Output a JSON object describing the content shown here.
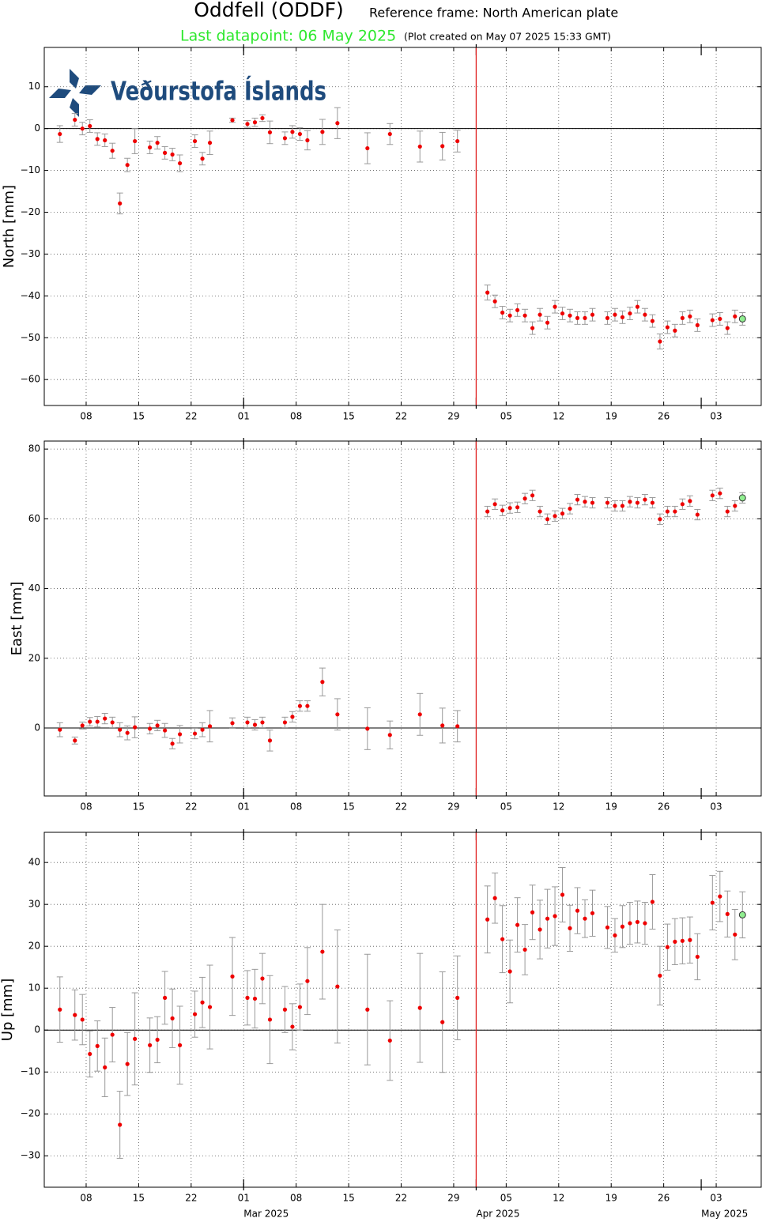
{
  "header": {
    "title": "Oddfell (ODDF)",
    "reference": "Reference frame: North American plate",
    "last_datapoint": "Last datapoint: 06 May 2025",
    "created": "(Plot created on May 07 2025 15:33 GMT)"
  },
  "logo": {
    "text": "Veðurstofa Íslands"
  },
  "chart_data": [
    {
      "type": "scatter",
      "ylabel": "North [mm]",
      "color": "#ee0000",
      "last_point_color": "#90ee90",
      "error_color": "#999999",
      "event_color": "#e02020",
      "event_date": "2025-04-01",
      "zero_line": true,
      "grid": true,
      "xlim": [
        "2025-02-02T10:00:00Z",
        "2025-05-09T00:00:00Z"
      ],
      "xticks": [
        {
          "value": "2025-02-08",
          "label": "08"
        },
        {
          "value": "2025-02-15",
          "label": "15"
        },
        {
          "value": "2025-02-22",
          "label": "22"
        },
        {
          "value": "2025-03-01",
          "label": "01"
        },
        {
          "value": "2025-03-08",
          "label": "08"
        },
        {
          "value": "2025-03-15",
          "label": "15"
        },
        {
          "value": "2025-03-22",
          "label": "22"
        },
        {
          "value": "2025-03-29",
          "label": "29"
        },
        {
          "value": "2025-04-05",
          "label": "05"
        },
        {
          "value": "2025-04-12",
          "label": "12"
        },
        {
          "value": "2025-04-19",
          "label": "19"
        },
        {
          "value": "2025-04-26",
          "label": "26"
        },
        {
          "value": "2025-05-03",
          "label": "03"
        }
      ],
      "ylim": [
        -66.2,
        19.4
      ],
      "yticks": [
        {
          "value": -60,
          "label": "−60"
        },
        {
          "value": -50,
          "label": "−50"
        },
        {
          "value": -40,
          "label": "−40"
        },
        {
          "value": -30,
          "label": "−30"
        },
        {
          "value": -20,
          "label": "−20"
        },
        {
          "value": -10,
          "label": "−10"
        },
        0,
        10
      ],
      "x": [
        "2025-02-04",
        "2025-02-06",
        "2025-02-07",
        "2025-02-08",
        "2025-02-09",
        "2025-02-10",
        "2025-02-11",
        "2025-02-12",
        "2025-02-13",
        "2025-02-14",
        "2025-02-16",
        "2025-02-17",
        "2025-02-18",
        "2025-02-19",
        "2025-02-20",
        "2025-02-22",
        "2025-02-23",
        "2025-02-24",
        "2025-02-27",
        "2025-03-01",
        "2025-03-02",
        "2025-03-03",
        "2025-03-04",
        "2025-03-06",
        "2025-03-07",
        "2025-03-08",
        "2025-03-09",
        "2025-03-11",
        "2025-03-13",
        "2025-03-17",
        "2025-03-20",
        "2025-03-24",
        "2025-03-27",
        "2025-03-29",
        "2025-04-02",
        "2025-04-03",
        "2025-04-04",
        "2025-04-05",
        "2025-04-06",
        "2025-04-07",
        "2025-04-08",
        "2025-04-09",
        "2025-04-10",
        "2025-04-11",
        "2025-04-12",
        "2025-04-13",
        "2025-04-14",
        "2025-04-15",
        "2025-04-16",
        "2025-04-18",
        "2025-04-19",
        "2025-04-20",
        "2025-04-21",
        "2025-04-22",
        "2025-04-23",
        "2025-04-24",
        "2025-04-25",
        "2025-04-26",
        "2025-04-27",
        "2025-04-28",
        "2025-04-29",
        "2025-04-30",
        "2025-05-02",
        "2025-05-03",
        "2025-05-04",
        "2025-05-05",
        "2025-05-06"
      ],
      "values": [
        -1.3,
        2.1,
        0,
        0.6,
        -2.5,
        -2.8,
        -5.3,
        -17.9,
        -8.7,
        -3.0,
        -4.5,
        -3.4,
        -5.8,
        -6.2,
        -8.3,
        -3.0,
        -7.2,
        -3.4,
        2.0,
        1.1,
        1.5,
        2.5,
        -0.9,
        -2.3,
        -0.8,
        -1.3,
        -2.8,
        -0.8,
        1.3,
        -4.7,
        -1.3,
        -4.3,
        -4.2,
        -3.0,
        -39.2,
        -41.3,
        -44.0,
        -44.7,
        -43.4,
        -44.7,
        -47.7,
        -44.5,
        -46.4,
        -42.6,
        -44.2,
        -44.7,
        -45.3,
        -45.3,
        -44.5,
        -45.3,
        -44.5,
        -45.1,
        -44.2,
        -42.6,
        -44.5,
        -46.0,
        -50.9,
        -47.5,
        -48.3,
        -45.3,
        -44.9,
        -47.0,
        -45.8,
        -45.5,
        -47.7,
        -44.9,
        -45.5
      ],
      "errors": [
        2,
        1.5,
        1.5,
        1.5,
        1.5,
        1.5,
        1.8,
        2.5,
        1.6,
        3,
        1.5,
        1.5,
        1.5,
        1.5,
        2,
        1.5,
        1.5,
        2.8,
        0.5,
        0.8,
        1,
        0.8,
        2.7,
        1.5,
        1.5,
        1.5,
        2.3,
        3,
        3.7,
        3.7,
        2.5,
        3.7,
        3.3,
        2.6,
        1.8,
        1.5,
        1.5,
        1.5,
        1.5,
        1.5,
        1.5,
        1.5,
        1.5,
        1.5,
        1.5,
        1.5,
        1.5,
        1.5,
        1.5,
        1.5,
        1.5,
        1.5,
        1.5,
        1.5,
        1.5,
        1.5,
        1.8,
        1.5,
        1.5,
        1.5,
        1.5,
        1.5,
        1.5,
        1.5,
        1.5,
        1.5,
        1.5
      ]
    },
    {
      "type": "scatter",
      "ylabel": "East [mm]",
      "color": "#ee0000",
      "last_point_color": "#90ee90",
      "error_color": "#999999",
      "event_color": "#e02020",
      "event_date": "2025-04-01",
      "zero_line": true,
      "grid": true,
      "xlim": [
        "2025-02-02T10:00:00Z",
        "2025-05-09T00:00:00Z"
      ],
      "xticks": [
        {
          "value": "2025-02-08",
          "label": "08"
        },
        {
          "value": "2025-02-15",
          "label": "15"
        },
        {
          "value": "2025-02-22",
          "label": "22"
        },
        {
          "value": "2025-03-01",
          "label": "01"
        },
        {
          "value": "2025-03-08",
          "label": "08"
        },
        {
          "value": "2025-03-15",
          "label": "15"
        },
        {
          "value": "2025-03-22",
          "label": "22"
        },
        {
          "value": "2025-03-29",
          "label": "29"
        },
        {
          "value": "2025-04-05",
          "label": "05"
        },
        {
          "value": "2025-04-12",
          "label": "12"
        },
        {
          "value": "2025-04-19",
          "label": "19"
        },
        {
          "value": "2025-04-26",
          "label": "26"
        },
        {
          "value": "2025-05-03",
          "label": "03"
        }
      ],
      "ylim": [
        -19.5,
        82.3
      ],
      "yticks": [
        0,
        20,
        40,
        60,
        80
      ],
      "x": [
        "2025-02-04",
        "2025-02-06",
        "2025-02-07",
        "2025-02-08",
        "2025-02-09",
        "2025-02-10",
        "2025-02-11",
        "2025-02-12",
        "2025-02-13",
        "2025-02-14",
        "2025-02-16",
        "2025-02-17",
        "2025-02-18",
        "2025-02-19",
        "2025-02-20",
        "2025-02-22",
        "2025-02-23",
        "2025-02-24",
        "2025-02-27",
        "2025-03-01",
        "2025-03-02",
        "2025-03-03",
        "2025-03-04",
        "2025-03-06",
        "2025-03-07",
        "2025-03-08",
        "2025-03-09",
        "2025-03-11",
        "2025-03-13",
        "2025-03-17",
        "2025-03-20",
        "2025-03-24",
        "2025-03-27",
        "2025-03-29",
        "2025-04-02",
        "2025-04-03",
        "2025-04-04",
        "2025-04-05",
        "2025-04-06",
        "2025-04-07",
        "2025-04-08",
        "2025-04-09",
        "2025-04-10",
        "2025-04-11",
        "2025-04-12",
        "2025-04-13",
        "2025-04-14",
        "2025-04-15",
        "2025-04-16",
        "2025-04-18",
        "2025-04-19",
        "2025-04-20",
        "2025-04-21",
        "2025-04-22",
        "2025-04-23",
        "2025-04-24",
        "2025-04-25",
        "2025-04-26",
        "2025-04-27",
        "2025-04-28",
        "2025-04-29",
        "2025-04-30",
        "2025-05-02",
        "2025-05-03",
        "2025-05-04",
        "2025-05-05",
        "2025-05-06"
      ],
      "values": [
        -0.5,
        -3.6,
        0.7,
        1.8,
        1.8,
        2.7,
        1.6,
        -0.5,
        -1.4,
        0.2,
        -0.2,
        0.7,
        -0.7,
        -4.5,
        -1.8,
        -1.6,
        -0.5,
        0.5,
        1.4,
        1.6,
        0.9,
        1.6,
        -3.6,
        1.6,
        3.2,
        6.3,
        6.3,
        13.2,
        3.9,
        -0.2,
        -2.0,
        3.9,
        0.7,
        0.5,
        62.1,
        64.2,
        62.4,
        63.1,
        63.3,
        65.8,
        66.7,
        62.1,
        59.9,
        60.8,
        61.5,
        62.9,
        65.5,
        64.9,
        64.6,
        64.6,
        63.7,
        63.7,
        64.9,
        64.6,
        65.5,
        64.6,
        59.9,
        62.1,
        62.1,
        64.2,
        65.1,
        61.2,
        66.7,
        67.3,
        62.1,
        63.7,
        66.0
      ],
      "errors": [
        2,
        1,
        1,
        1.2,
        1.5,
        1.5,
        1.5,
        2,
        2,
        3,
        1.5,
        1.5,
        2,
        1.5,
        2.5,
        1.5,
        2,
        4.5,
        1.5,
        1.5,
        1.5,
        1.5,
        3,
        1.5,
        1.5,
        1.5,
        1.5,
        4,
        4.5,
        6,
        4,
        6,
        5,
        4.5,
        1.5,
        1.5,
        1.5,
        1.5,
        1.5,
        1.5,
        1.5,
        1.5,
        1.5,
        1.5,
        1.5,
        1.5,
        1.5,
        1.5,
        1.5,
        1.5,
        1.5,
        1.5,
        1.5,
        1.5,
        1.5,
        1.5,
        1.5,
        1.5,
        1.5,
        1.5,
        1.5,
        1.5,
        1.5,
        1.5,
        1.5,
        1.5,
        1.5
      ]
    },
    {
      "type": "scatter",
      "ylabel": "Up [mm]",
      "color": "#ee0000",
      "last_point_color": "#90ee90",
      "error_color": "#999999",
      "event_color": "#e02020",
      "event_date": "2025-04-01",
      "zero_line": true,
      "grid": true,
      "xlim": [
        "2025-02-02T10:00:00Z",
        "2025-05-09T00:00:00Z"
      ],
      "xticks": [
        {
          "value": "2025-02-08",
          "label": "08"
        },
        {
          "value": "2025-02-15",
          "label": "15"
        },
        {
          "value": "2025-02-22",
          "label": "22"
        },
        {
          "value": "2025-03-01",
          "label": "01"
        },
        {
          "value": "2025-03-08",
          "label": "08"
        },
        {
          "value": "2025-03-15",
          "label": "15"
        },
        {
          "value": "2025-03-22",
          "label": "22"
        },
        {
          "value": "2025-03-29",
          "label": "29"
        },
        {
          "value": "2025-04-05",
          "label": "05"
        },
        {
          "value": "2025-04-12",
          "label": "12"
        },
        {
          "value": "2025-04-19",
          "label": "19"
        },
        {
          "value": "2025-04-26",
          "label": "26"
        },
        {
          "value": "2025-05-03",
          "label": "03"
        }
      ],
      "month_ticks": [
        {
          "value": "2025-03-01",
          "label": "Mar 2025"
        },
        {
          "value": "2025-04-01",
          "label": "Apr 2025"
        },
        {
          "value": "2025-05-01",
          "label": "May 2025"
        }
      ],
      "ylim": [
        -37.5,
        47.2
      ],
      "yticks": [
        {
          "value": -30,
          "label": "−30"
        },
        {
          "value": -20,
          "label": "−20"
        },
        {
          "value": -10,
          "label": "−10"
        },
        0,
        10,
        20,
        30,
        40
      ],
      "x": [
        "2025-02-04",
        "2025-02-06",
        "2025-02-07",
        "2025-02-08",
        "2025-02-09",
        "2025-02-10",
        "2025-02-11",
        "2025-02-12",
        "2025-02-13",
        "2025-02-14",
        "2025-02-16",
        "2025-02-17",
        "2025-02-18",
        "2025-02-19",
        "2025-02-20",
        "2025-02-22",
        "2025-02-23",
        "2025-02-24",
        "2025-02-27",
        "2025-03-01",
        "2025-03-02",
        "2025-03-03",
        "2025-03-04",
        "2025-03-06",
        "2025-03-07",
        "2025-03-08",
        "2025-03-09",
        "2025-03-11",
        "2025-03-13",
        "2025-03-17",
        "2025-03-20",
        "2025-03-24",
        "2025-03-27",
        "2025-03-29",
        "2025-04-02",
        "2025-04-03",
        "2025-04-04",
        "2025-04-05",
        "2025-04-06",
        "2025-04-07",
        "2025-04-08",
        "2025-04-09",
        "2025-04-10",
        "2025-04-11",
        "2025-04-12",
        "2025-04-13",
        "2025-04-14",
        "2025-04-15",
        "2025-04-16",
        "2025-04-18",
        "2025-04-19",
        "2025-04-20",
        "2025-04-21",
        "2025-04-22",
        "2025-04-23",
        "2025-04-24",
        "2025-04-25",
        "2025-04-26",
        "2025-04-27",
        "2025-04-28",
        "2025-04-29",
        "2025-04-30",
        "2025-05-02",
        "2025-05-03",
        "2025-05-04",
        "2025-05-05",
        "2025-05-06"
      ],
      "values": [
        4.9,
        3.6,
        2.5,
        -5.7,
        -3.8,
        -8.9,
        -1.1,
        -22.6,
        -8.1,
        -2.1,
        -3.6,
        -2.3,
        7.7,
        2.8,
        -3.6,
        3.8,
        6.6,
        5.5,
        12.8,
        7.7,
        7.5,
        12.3,
        2.5,
        4.9,
        0.8,
        5.5,
        11.7,
        18.7,
        10.4,
        4.9,
        -2.5,
        5.3,
        1.9,
        7.7,
        26.4,
        31.5,
        21.7,
        14.0,
        25.1,
        19.2,
        28.1,
        24.0,
        26.6,
        27.2,
        32.3,
        24.3,
        28.5,
        26.6,
        27.9,
        24.5,
        22.6,
        24.7,
        25.5,
        25.8,
        25.5,
        30.6,
        13.0,
        19.8,
        21.1,
        21.3,
        21.5,
        17.5,
        30.4,
        31.9,
        27.7,
        22.8,
        27.5
      ],
      "errors": [
        7.8,
        6,
        6,
        5.5,
        6,
        7,
        6.5,
        8,
        7.5,
        11,
        6.5,
        5.5,
        6.3,
        7,
        9.3,
        5.5,
        6,
        10,
        9.3,
        6.5,
        7,
        6,
        10.5,
        5.5,
        5.5,
        5.5,
        8,
        11.3,
        13.5,
        13.2,
        9.5,
        13,
        12,
        10,
        8,
        6,
        8,
        7.5,
        6.5,
        6,
        6.5,
        7,
        7,
        7,
        6.5,
        5.5,
        5.5,
        4.5,
        5.5,
        5,
        4,
        5,
        5,
        5,
        5,
        6.5,
        7,
        5.5,
        5.5,
        5.5,
        5.5,
        5.5,
        6.5,
        6,
        5.5,
        6,
        5.5
      ]
    }
  ]
}
